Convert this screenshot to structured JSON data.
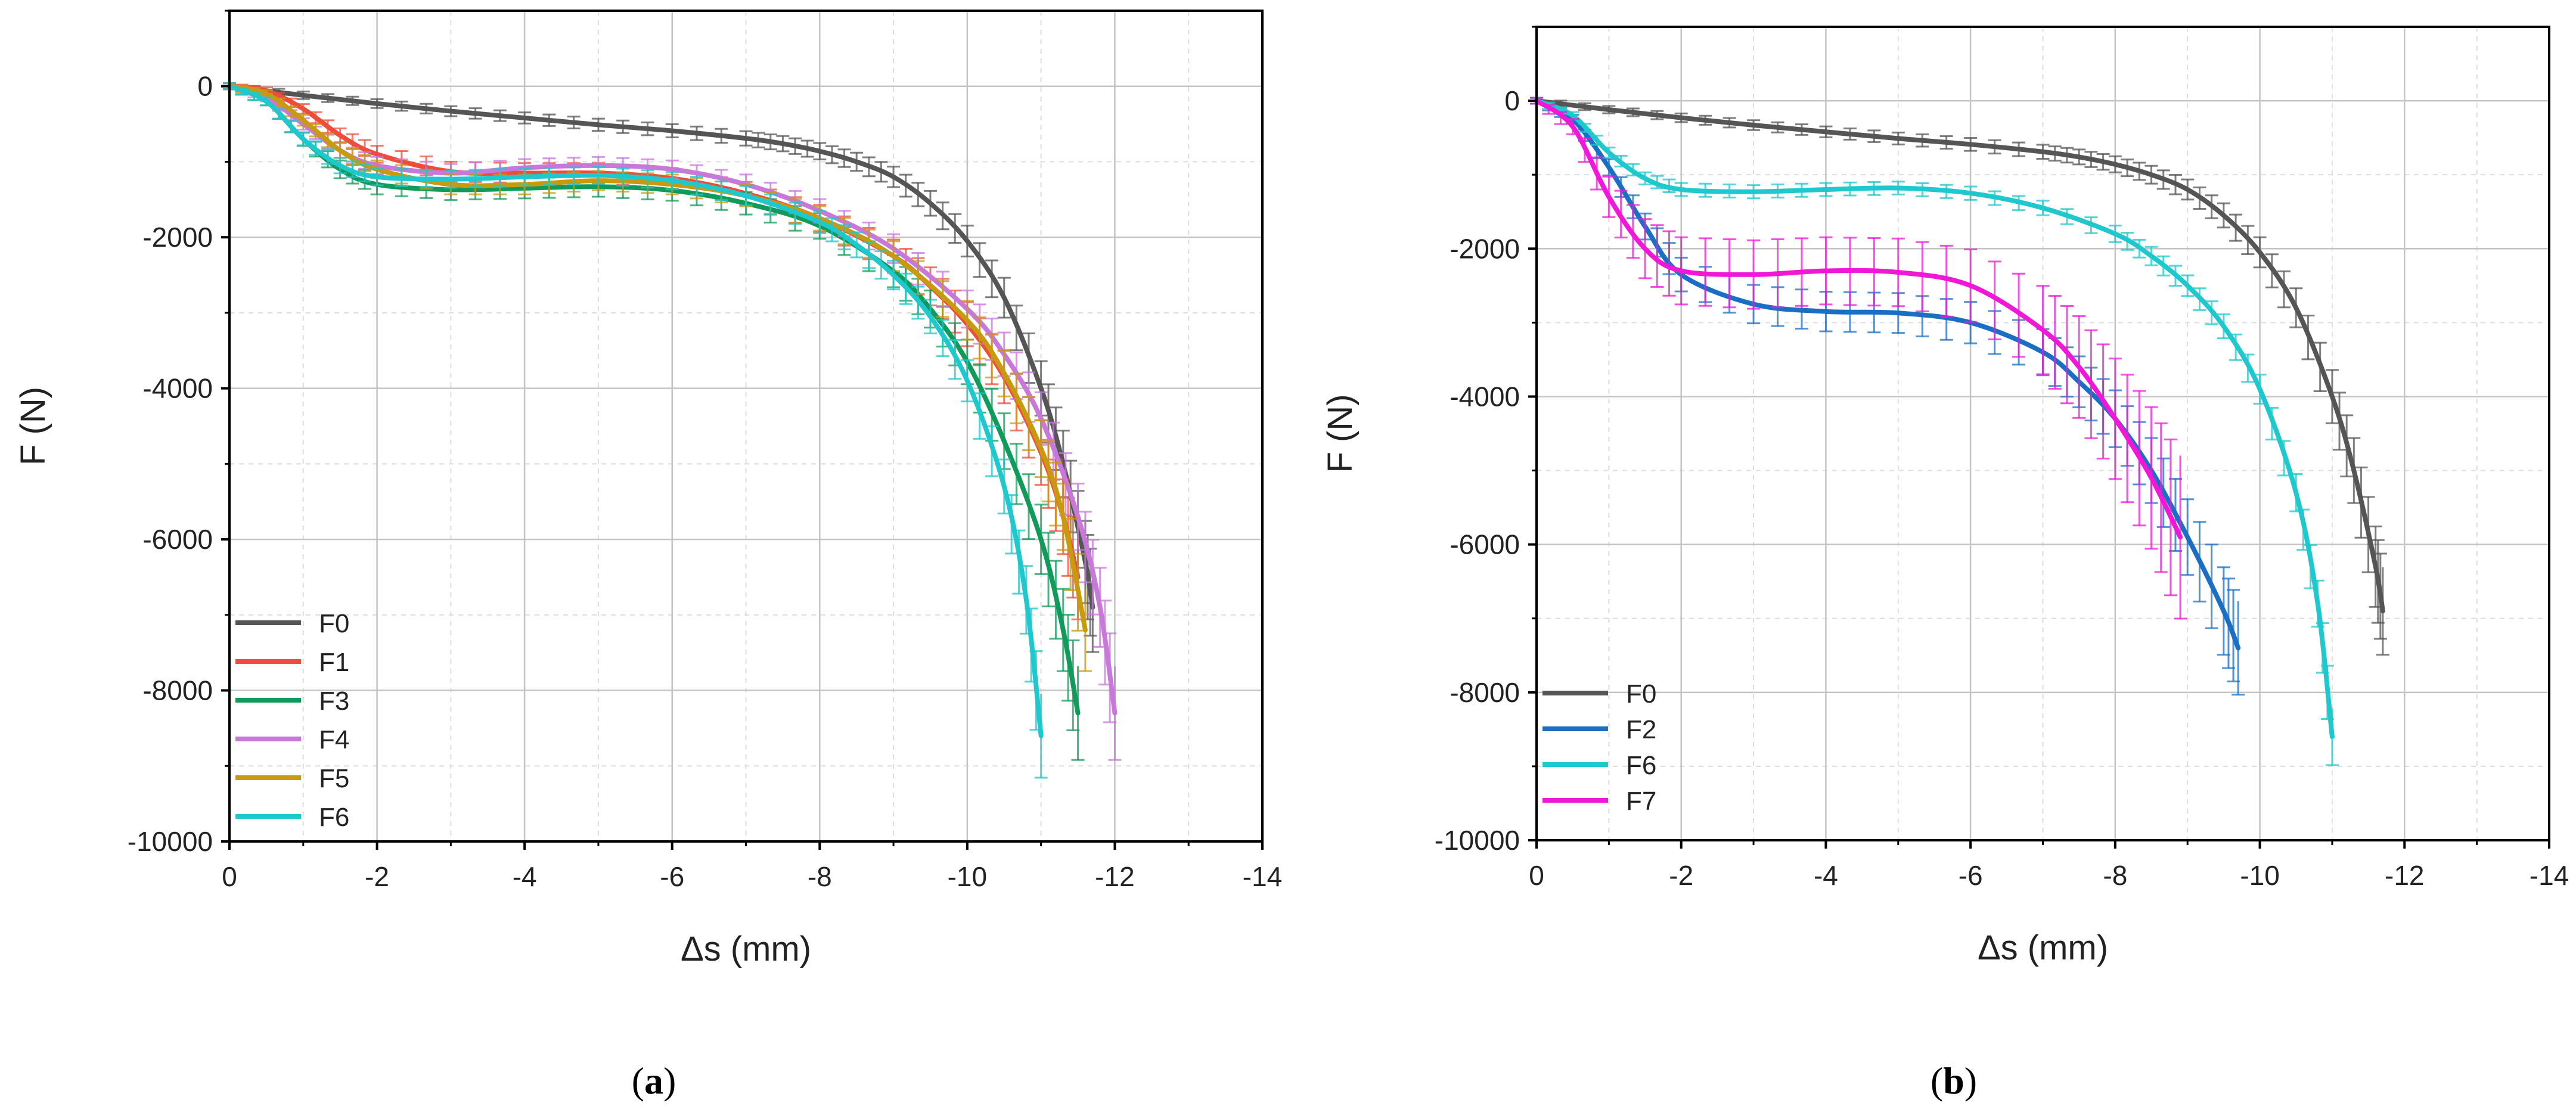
{
  "chart_data": [
    {
      "id": "a",
      "type": "line",
      "caption_letter": "a",
      "xlabel": "Δs (mm)",
      "ylabel": "F (N)",
      "xlim": [
        0,
        -14
      ],
      "ylim": [
        -10000,
        1000
      ],
      "xticks": [
        "0",
        "-2",
        "-4",
        "-6",
        "-8",
        "-10",
        "-12",
        "-14"
      ],
      "xtick_values": [
        0,
        -2,
        -4,
        -6,
        -8,
        -10,
        -12,
        -14
      ],
      "yticks": [
        "0",
        "-2000",
        "-4000",
        "-6000",
        "-8000",
        "-10000"
      ],
      "ytick_values": [
        0,
        -2000,
        -4000,
        -6000,
        -8000,
        -10000
      ],
      "grid": true,
      "legend_position": "bottom-left",
      "series": [
        {
          "name": "F0",
          "color": "#555555",
          "err": 0.08,
          "x": [
            0,
            -1,
            -2,
            -3,
            -4,
            -5,
            -6,
            -7,
            -7.5,
            -8,
            -8.5,
            -9,
            -9.5,
            -10,
            -10.5,
            -11,
            -11.3,
            -11.6,
            -11.7
          ],
          "y": [
            0,
            -120,
            -230,
            -330,
            -420,
            -510,
            -590,
            -690,
            -760,
            -860,
            -1000,
            -1200,
            -1550,
            -2050,
            -2800,
            -4000,
            -5000,
            -6300,
            -6900
          ]
        },
        {
          "name": "F1",
          "color": "#ef4d3c",
          "err": 0.08,
          "x": [
            0,
            -0.5,
            -1,
            -1.5,
            -2,
            -3,
            -4,
            -5,
            -6,
            -7,
            -8,
            -9,
            -9.5,
            -10,
            -10.5,
            -11,
            -11.3,
            -11.5
          ],
          "y": [
            0,
            -60,
            -300,
            -650,
            -900,
            -1130,
            -1150,
            -1150,
            -1220,
            -1420,
            -1750,
            -2250,
            -2650,
            -3150,
            -3850,
            -4850,
            -5700,
            -6500
          ]
        },
        {
          "name": "F3",
          "color": "#119a5a",
          "err": 0.07,
          "x": [
            0,
            -0.5,
            -1,
            -1.5,
            -2,
            -3,
            -4,
            -5,
            -6,
            -7,
            -8,
            -9,
            -9.5,
            -10,
            -10.5,
            -11,
            -11.3,
            -11.5
          ],
          "y": [
            0,
            -200,
            -700,
            -1100,
            -1300,
            -1370,
            -1350,
            -1330,
            -1380,
            -1550,
            -1850,
            -2450,
            -2950,
            -3650,
            -4700,
            -6000,
            -7200,
            -8300
          ]
        },
        {
          "name": "F4",
          "color": "#c878d8",
          "err": 0.07,
          "x": [
            0,
            -0.5,
            -1,
            -1.5,
            -2,
            -3,
            -4,
            -5,
            -6,
            -7,
            -8,
            -9,
            -10,
            -10.5,
            -11,
            -11.5,
            -11.8,
            -12
          ],
          "y": [
            0,
            -150,
            -500,
            -850,
            -1050,
            -1150,
            -1080,
            -1050,
            -1100,
            -1300,
            -1650,
            -2150,
            -2950,
            -3550,
            -4400,
            -5700,
            -6900,
            -8300
          ]
        },
        {
          "name": "F5",
          "color": "#c79a10",
          "err": 0.07,
          "x": [
            0,
            -0.5,
            -1,
            -1.5,
            -2,
            -3,
            -4,
            -5,
            -6,
            -7,
            -8,
            -9,
            -10,
            -10.5,
            -11,
            -11.3,
            -11.6
          ],
          "y": [
            0,
            -100,
            -450,
            -850,
            -1100,
            -1300,
            -1300,
            -1250,
            -1300,
            -1450,
            -1750,
            -2250,
            -3100,
            -3800,
            -4800,
            -5700,
            -7200
          ]
        },
        {
          "name": "F6",
          "color": "#1ec8cd",
          "err": 0.06,
          "x": [
            0,
            -0.5,
            -1,
            -1.5,
            -2,
            -3,
            -4,
            -5,
            -6,
            -7,
            -8,
            -8.5,
            -9,
            -9.5,
            -10,
            -10.5,
            -10.8,
            -11
          ],
          "y": [
            0,
            -200,
            -700,
            -1050,
            -1200,
            -1230,
            -1200,
            -1180,
            -1250,
            -1450,
            -1800,
            -2100,
            -2500,
            -3050,
            -3900,
            -5300,
            -6800,
            -8600
          ]
        }
      ]
    },
    {
      "id": "b",
      "type": "line",
      "caption_letter": "b",
      "xlabel": "Δs (mm)",
      "ylabel": "F (N)",
      "xlim": [
        0,
        -14
      ],
      "ylim": [
        -10000,
        1000
      ],
      "xticks": [
        "0",
        "-2",
        "-4",
        "-6",
        "-8",
        "-10",
        "-12",
        "-14"
      ],
      "xtick_values": [
        0,
        -2,
        -4,
        -6,
        -8,
        -10,
        -12,
        -14
      ],
      "yticks": [
        "0",
        "-2000",
        "-4000",
        "-6000",
        "-8000",
        "-10000"
      ],
      "ytick_values": [
        0,
        -2000,
        -4000,
        -6000,
        -8000,
        -10000
      ],
      "grid": true,
      "legend_position": "bottom-left",
      "series": [
        {
          "name": "F0",
          "color": "#555555",
          "err": 0.08,
          "x": [
            0,
            -1,
            -2,
            -3,
            -4,
            -5,
            -6,
            -7,
            -7.5,
            -8,
            -8.5,
            -9,
            -9.5,
            -10,
            -10.5,
            -11,
            -11.3,
            -11.6,
            -11.7
          ],
          "y": [
            0,
            -120,
            -230,
            -330,
            -420,
            -510,
            -590,
            -690,
            -760,
            -860,
            -1000,
            -1200,
            -1550,
            -2050,
            -2800,
            -4000,
            -5000,
            -6300,
            -6900
          ]
        },
        {
          "name": "F2",
          "color": "#1a6fc4",
          "err": 0.08,
          "x": [
            0,
            -0.5,
            -1,
            -1.5,
            -2,
            -3,
            -4,
            -5,
            -6,
            -7,
            -7.5,
            -8,
            -8.5,
            -9,
            -9.5,
            -9.7
          ],
          "y": [
            0,
            -250,
            -900,
            -1700,
            -2350,
            -2750,
            -2850,
            -2870,
            -3000,
            -3400,
            -3800,
            -4300,
            -5000,
            -5900,
            -6900,
            -7400
          ]
        },
        {
          "name": "F6",
          "color": "#1ec8cd",
          "err": 0.04,
          "x": [
            0,
            -0.5,
            -1,
            -1.5,
            -2,
            -3,
            -4,
            -5,
            -6,
            -7,
            -8,
            -8.5,
            -9,
            -9.5,
            -10,
            -10.5,
            -10.8,
            -11
          ],
          "y": [
            0,
            -200,
            -700,
            -1050,
            -1200,
            -1230,
            -1200,
            -1180,
            -1250,
            -1450,
            -1800,
            -2100,
            -2500,
            -3050,
            -3900,
            -5300,
            -6800,
            -8600
          ]
        },
        {
          "name": "F7",
          "color": "#f018d6",
          "err": 0.18,
          "x": [
            0,
            -0.5,
            -1,
            -1.5,
            -2,
            -3,
            -4,
            -5,
            -6,
            -7,
            -7.5,
            -8,
            -8.5,
            -8.9
          ],
          "y": [
            0,
            -350,
            -1300,
            -2000,
            -2300,
            -2350,
            -2300,
            -2320,
            -2500,
            -3100,
            -3600,
            -4300,
            -5100,
            -5900
          ]
        }
      ]
    }
  ]
}
